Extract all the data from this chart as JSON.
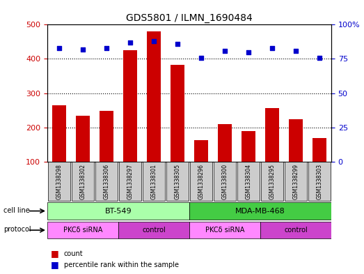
{
  "title": "GDS5801 / ILMN_1690484",
  "samples": [
    "GSM1338298",
    "GSM1338302",
    "GSM1338306",
    "GSM1338297",
    "GSM1338301",
    "GSM1338305",
    "GSM1338296",
    "GSM1338300",
    "GSM1338304",
    "GSM1338295",
    "GSM1338299",
    "GSM1338303"
  ],
  "counts": [
    265,
    235,
    248,
    425,
    480,
    382,
    163,
    210,
    190,
    256,
    224,
    168
  ],
  "percentiles": [
    83,
    82,
    83,
    87,
    88,
    86,
    76,
    81,
    80,
    83,
    81,
    76
  ],
  "ylim_left": [
    100,
    500
  ],
  "ylim_right": [
    0,
    100
  ],
  "yticks_left": [
    100,
    200,
    300,
    400,
    500
  ],
  "yticks_right": [
    0,
    25,
    50,
    75,
    100
  ],
  "bar_color": "#cc0000",
  "dot_color": "#0000cc",
  "cell_line_groups": [
    {
      "label": "BT-549",
      "start": 0,
      "end": 6,
      "color": "#aaffaa"
    },
    {
      "label": "MDA-MB-468",
      "start": 6,
      "end": 12,
      "color": "#44cc44"
    }
  ],
  "protocol_groups": [
    {
      "label": "PKCδ siRNA",
      "start": 0,
      "end": 3,
      "color": "#ff88ff"
    },
    {
      "label": "control",
      "start": 3,
      "end": 6,
      "color": "#cc44cc"
    },
    {
      "label": "PKCδ siRNA",
      "start": 6,
      "end": 9,
      "color": "#ff88ff"
    },
    {
      "label": "control",
      "start": 9,
      "end": 12,
      "color": "#cc44cc"
    }
  ],
  "bg_color": "#cccccc",
  "grid_color": "#000000",
  "left_tick_color": "#cc0000",
  "right_tick_color": "#0000cc"
}
